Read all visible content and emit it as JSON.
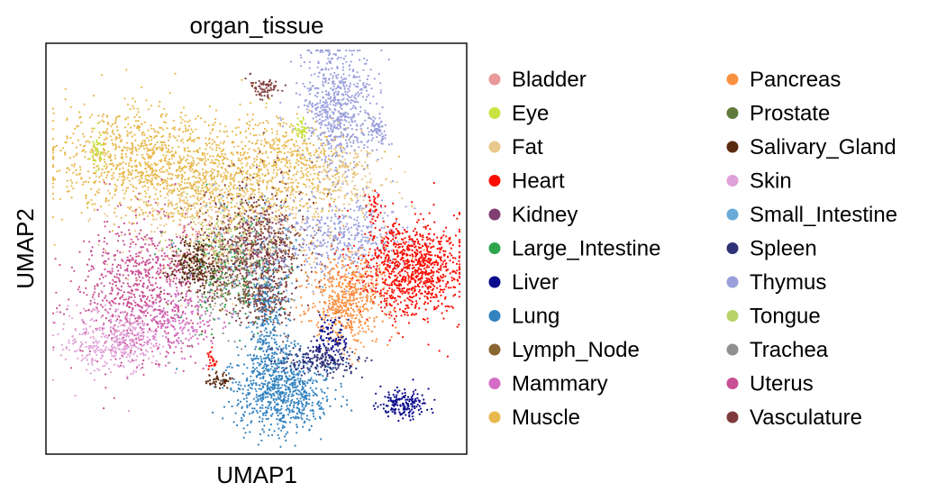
{
  "chart_data": {
    "type": "scatter",
    "title": "organ_tissue",
    "xlabel": "UMAP1",
    "ylabel": "UMAP2",
    "xlim": [
      0,
      100
    ],
    "ylim": [
      0,
      100
    ],
    "grid": false,
    "ticks": false,
    "legend_placement": "right",
    "legend": [
      {
        "name": "Bladder",
        "color": "#e8999a"
      },
      {
        "name": "Eye",
        "color": "#c7e341"
      },
      {
        "name": "Fat",
        "color": "#e8c88c"
      },
      {
        "name": "Heart",
        "color": "#fa0d00"
      },
      {
        "name": "Kidney",
        "color": "#7f3f73"
      },
      {
        "name": "Large_Intestine",
        "color": "#2ea44f"
      },
      {
        "name": "Liver",
        "color": "#0a0a8c"
      },
      {
        "name": "Lung",
        "color": "#3282bf"
      },
      {
        "name": "Lymph_Node",
        "color": "#8a6632"
      },
      {
        "name": "Mammary",
        "color": "#d46cc6"
      },
      {
        "name": "Muscle",
        "color": "#e8b94d"
      },
      {
        "name": "Pancreas",
        "color": "#fa9141"
      },
      {
        "name": "Prostate",
        "color": "#5f7a3a"
      },
      {
        "name": "Salivary_Gland",
        "color": "#5a2a10"
      },
      {
        "name": "Skin",
        "color": "#e0a0d8"
      },
      {
        "name": "Small_Intestine",
        "color": "#6aaad8"
      },
      {
        "name": "Spleen",
        "color": "#2f3278"
      },
      {
        "name": "Thymus",
        "color": "#9a9fdc"
      },
      {
        "name": "Tongue",
        "color": "#b8d46a"
      },
      {
        "name": "Trachea",
        "color": "#8f8f8f"
      },
      {
        "name": "Uterus",
        "color": "#c84f93"
      },
      {
        "name": "Vasculature",
        "color": "#7f3b3b"
      }
    ],
    "clusters": [
      {
        "category": "Muscle",
        "center": [
          22,
          72
        ],
        "spread": [
          11,
          7
        ],
        "n": 900
      },
      {
        "category": "Muscle",
        "center": [
          45,
          67
        ],
        "spread": [
          13,
          7
        ],
        "n": 700
      },
      {
        "category": "Muscle",
        "center": [
          58,
          74
        ],
        "spread": [
          8,
          5
        ],
        "n": 300
      },
      {
        "category": "Fat",
        "center": [
          42,
          56
        ],
        "spread": [
          13,
          8
        ],
        "n": 550
      },
      {
        "category": "Fat",
        "center": [
          72,
          68
        ],
        "spread": [
          5,
          4
        ],
        "n": 160
      },
      {
        "category": "Vasculature",
        "center": [
          50,
          49
        ],
        "spread": [
          6,
          8
        ],
        "n": 650
      },
      {
        "category": "Vasculature",
        "center": [
          53,
          37
        ],
        "spread": [
          3,
          3
        ],
        "n": 150
      },
      {
        "category": "Vasculature",
        "center": [
          52,
          91
        ],
        "spread": [
          2,
          1.5
        ],
        "n": 70
      },
      {
        "category": "Thymus",
        "center": [
          70,
          86
        ],
        "spread": [
          4.5,
          8
        ],
        "n": 650
      },
      {
        "category": "Thymus",
        "center": [
          71,
          53
        ],
        "spread": [
          8,
          5
        ],
        "n": 420
      },
      {
        "category": "Thymus",
        "center": [
          80,
          80
        ],
        "spread": [
          1.2,
          2
        ],
        "n": 60
      },
      {
        "category": "Heart",
        "center": [
          88,
          45
        ],
        "spread": [
          6.5,
          6
        ],
        "n": 950
      },
      {
        "category": "Heart",
        "center": [
          79,
          61
        ],
        "spread": [
          1,
          2
        ],
        "n": 40
      },
      {
        "category": "Heart",
        "center": [
          39,
          22
        ],
        "spread": [
          0.7,
          1.2
        ],
        "n": 25
      },
      {
        "category": "Pancreas",
        "center": [
          72,
          37
        ],
        "spread": [
          5,
          6
        ],
        "n": 550
      },
      {
        "category": "Uterus",
        "center": [
          21,
          40
        ],
        "spread": [
          7.5,
          9
        ],
        "n": 750
      },
      {
        "category": "Skin",
        "center": [
          15,
          27
        ],
        "spread": [
          6,
          4
        ],
        "n": 420
      },
      {
        "category": "Mammary",
        "center": [
          31,
          32
        ],
        "spread": [
          5,
          4
        ],
        "n": 170
      },
      {
        "category": "Lung",
        "center": [
          56,
          14
        ],
        "spread": [
          6,
          5
        ],
        "n": 750
      },
      {
        "category": "Lung",
        "center": [
          53,
          30
        ],
        "spread": [
          2.5,
          8
        ],
        "n": 250
      },
      {
        "category": "Spleen",
        "center": [
          66,
          22
        ],
        "spread": [
          5,
          2
        ],
        "n": 220
      },
      {
        "category": "Liver",
        "center": [
          68,
          28
        ],
        "spread": [
          2,
          3
        ],
        "n": 90
      },
      {
        "category": "Liver",
        "center": [
          86,
          11
        ],
        "spread": [
          3,
          1.8
        ],
        "n": 170
      },
      {
        "category": "Salivary_Gland",
        "center": [
          35,
          46
        ],
        "spread": [
          3.5,
          3
        ],
        "n": 280
      },
      {
        "category": "Salivary_Gland",
        "center": [
          41,
          17
        ],
        "spread": [
          1.6,
          1
        ],
        "n": 50
      },
      {
        "category": "Eye",
        "center": [
          61,
          80
        ],
        "spread": [
          1,
          1.5
        ],
        "n": 45
      },
      {
        "category": "Eye",
        "center": [
          11,
          74
        ],
        "spread": [
          0.8,
          2
        ],
        "n": 40
      },
      {
        "category": "Large_Intestine",
        "center": [
          44,
          44
        ],
        "spread": [
          6,
          7
        ],
        "n": 120
      },
      {
        "category": "Lymph_Node",
        "center": [
          47,
          46
        ],
        "spread": [
          7,
          7
        ],
        "n": 100
      },
      {
        "category": "Trachea",
        "center": [
          44,
          38
        ],
        "spread": [
          7,
          7
        ],
        "n": 100
      },
      {
        "category": "Small_Intestine",
        "center": [
          48,
          48
        ],
        "spread": [
          7,
          8
        ],
        "n": 130
      },
      {
        "category": "Bladder",
        "center": [
          41,
          50
        ],
        "spread": [
          6,
          6
        ],
        "n": 90
      },
      {
        "category": "Tongue",
        "center": [
          43,
          54
        ],
        "spread": [
          6,
          6
        ],
        "n": 90
      },
      {
        "category": "Prostate",
        "center": [
          46,
          42
        ],
        "spread": [
          6,
          5
        ],
        "n": 70
      },
      {
        "category": "Kidney",
        "center": [
          50,
          52
        ],
        "spread": [
          5,
          6
        ],
        "n": 80
      }
    ]
  }
}
